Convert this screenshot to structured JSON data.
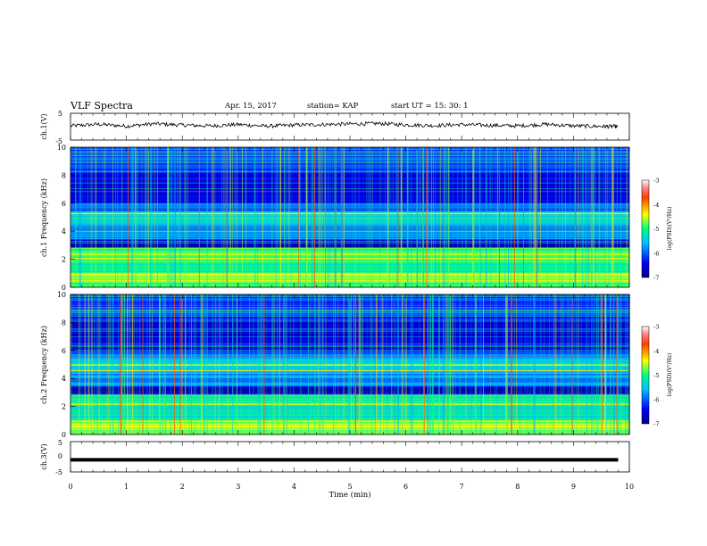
{
  "header": {
    "title": "VLF Spectra",
    "date": "Apr. 15, 2017",
    "station": "station= KAP",
    "start": "start  UT =   15: 30: 1"
  },
  "chart_data": [
    {
      "type": "line",
      "panel": "ch1-waveform",
      "ylabel": "ch.1(V)",
      "ylim": [
        -5,
        5
      ],
      "yticks": [
        "5",
        "-5"
      ],
      "xlim": [
        0,
        10
      ],
      "x": [
        0,
        0.5,
        1,
        1.5,
        2,
        2.5,
        3,
        3.5,
        4,
        4.5,
        5,
        5.5,
        6,
        6.5,
        7,
        7.5,
        8,
        8.5,
        9,
        9.5,
        9.8
      ],
      "y": [
        0.3,
        0.9,
        0.2,
        1.1,
        0.6,
        0.3,
        0.8,
        0.2,
        0.6,
        0.8,
        1.0,
        1.2,
        0.7,
        0.4,
        0.8,
        0.5,
        0.3,
        0.9,
        0.3,
        0.1,
        0.1
      ]
    },
    {
      "type": "heatmap",
      "panel": "ch1-spectrogram",
      "ylabel": "ch.1 Frequency (kHz)",
      "ylim": [
        0,
        10
      ],
      "yticks": [
        "0",
        "2",
        "4",
        "6",
        "8",
        "10"
      ],
      "xlim": [
        0,
        10
      ],
      "colorbar": {
        "label": "log(PSD)(V²/Hz)",
        "range": [
          -7,
          -3
        ],
        "ticks": [
          "-3",
          "-4",
          "-5",
          "-6",
          "-7"
        ]
      }
    },
    {
      "type": "heatmap",
      "panel": "ch2-spectrogram",
      "ylabel": "ch.2 Frequency (kHz)",
      "ylim": [
        0,
        10
      ],
      "yticks": [
        "0",
        "2",
        "4",
        "6",
        "8",
        "10"
      ],
      "xlim": [
        0,
        10
      ],
      "colorbar": {
        "label": "log(PSD)(V²/Hz)",
        "range": [
          -7,
          -3
        ],
        "ticks": [
          "-3",
          "-4",
          "-5",
          "-6",
          "-7"
        ]
      }
    },
    {
      "type": "line",
      "panel": "ch3-waveform",
      "ylabel": "ch.3(V)",
      "ylim": [
        -5,
        5
      ],
      "yticks": [
        "5",
        "0",
        "-5"
      ],
      "xlim": [
        0,
        10
      ],
      "x": [
        0,
        9.8
      ],
      "y": [
        -1,
        -1
      ]
    }
  ],
  "xaxis": {
    "label": "Time (min)",
    "ticks": [
      "0",
      "1",
      "2",
      "3",
      "4",
      "5",
      "6",
      "7",
      "8",
      "9",
      "10"
    ]
  }
}
